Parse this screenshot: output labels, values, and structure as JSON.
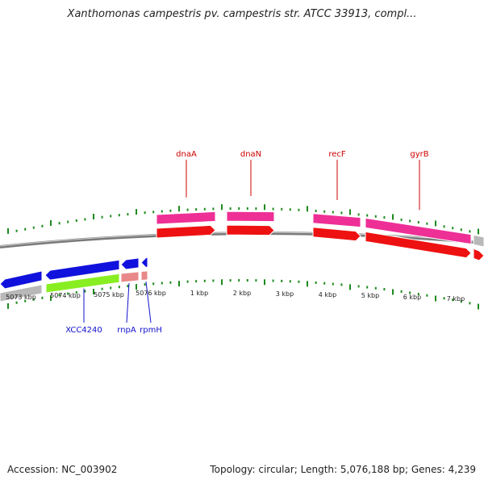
{
  "header": {
    "title": "Xanthomonas campestris pv. campestris str. ATCC 33913, compl..."
  },
  "footer": {
    "accession": "Accession: NC_003902",
    "info": "Topology: circular; Length: 5,076,188 bp; Genes: 4,239"
  },
  "map": {
    "position_labels": [
      "5073 kbp",
      "5074 kbp",
      "5075 kbp",
      "5076 kbp",
      "1 kbp",
      "2 kbp",
      "3 kbp",
      "4 kbp",
      "5 kbp",
      "6 kbp",
      "7 kbp"
    ],
    "gene_labels_top": [
      "dnaA",
      "dnaN",
      "recF",
      "gyrB"
    ],
    "gene_labels_bottom": [
      "XCC4240",
      "rnpA",
      "rpmH"
    ]
  },
  "colors": {
    "tick": "#1e8a1e",
    "backbone": "#9a9a9a",
    "forward_cds": "#ee1111",
    "forward_gene": "#ee2f96",
    "reverse_cds": "#1111dd",
    "reverse_gene": "#88ee22",
    "rna": "#e88888",
    "neutral": "#b8b8b8",
    "label_top": "#cc0000",
    "label_bottom": "#1111cc"
  }
}
